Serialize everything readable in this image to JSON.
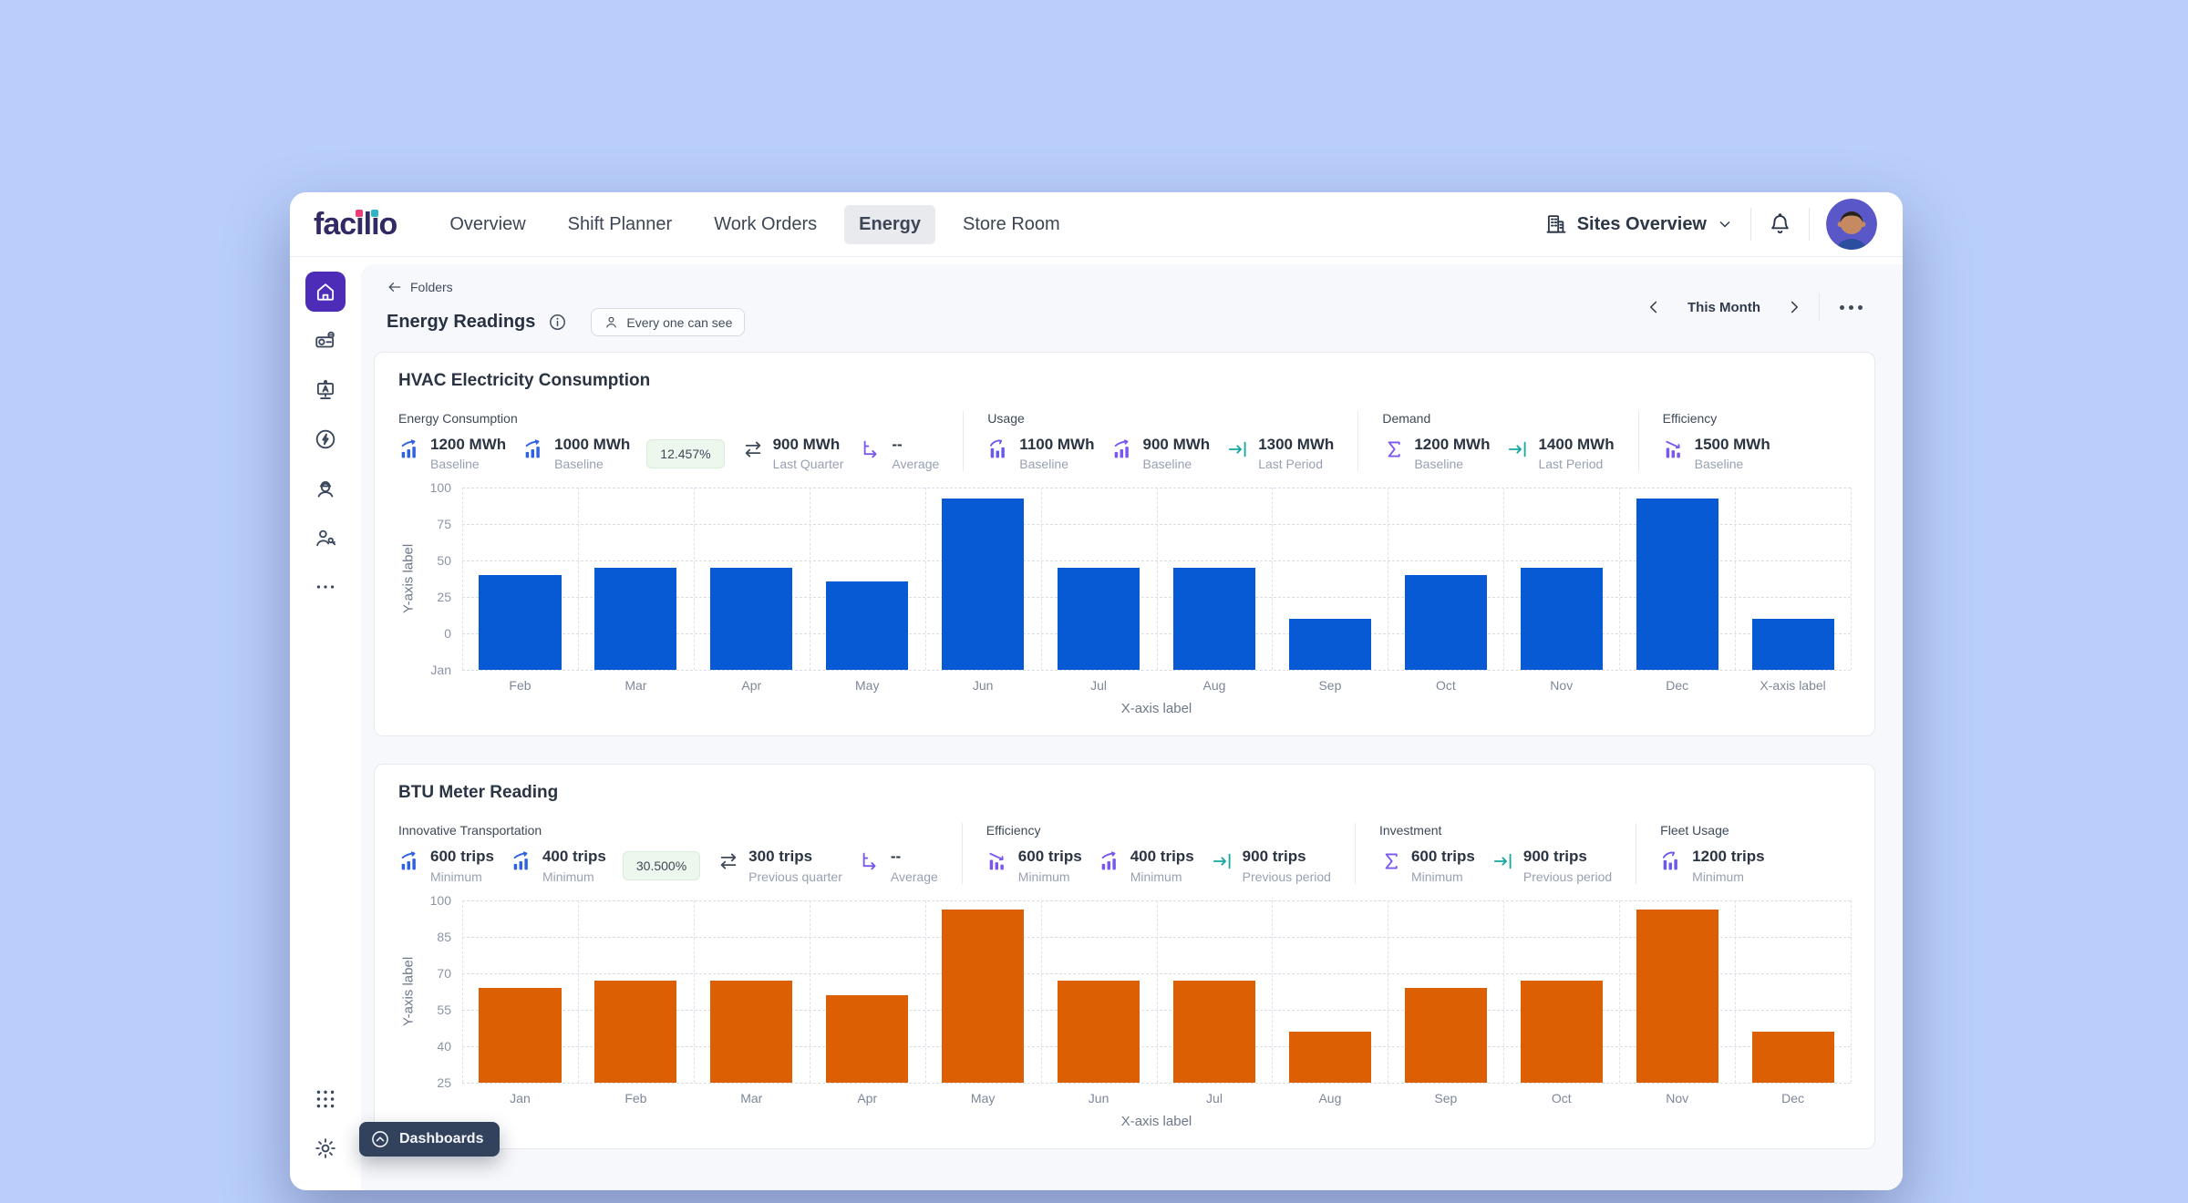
{
  "topnav": {
    "logo_text": "facilio",
    "logo_dot_colors": [
      "#ee3d77",
      "#2fb5c7"
    ],
    "items": [
      "Overview",
      "Shift Planner",
      "Work Orders",
      "Energy",
      "Store Room"
    ],
    "active_item": "Energy",
    "site_selector_label": "Sites Overview"
  },
  "sidebar": {
    "icons": [
      "home",
      "equipment",
      "kiosk",
      "energy",
      "workforce",
      "technician",
      "more"
    ],
    "bottom_icons": [
      "app-grid",
      "settings"
    ],
    "active_icon": "home"
  },
  "page_header": {
    "breadcrumb_label": "Folders",
    "title": "Energy Readings",
    "visibility_badge": "Every one can see",
    "period_label": "This Month"
  },
  "floating_button": {
    "label": "Dashboards"
  },
  "cards": [
    {
      "title": "HVAC Electricity Consumption",
      "chart_index": 0,
      "groups": [
        {
          "label": "Energy Consumption",
          "items": [
            {
              "kind": "kpi",
              "icon": "bars-up",
              "icon_color": "#2e62e0",
              "value": "1200 MWh",
              "sub": "Baseline"
            },
            {
              "kind": "kpi",
              "icon": "bars-up",
              "icon_color": "#2e62e0",
              "value": "1000 MWh",
              "sub": "Baseline"
            },
            {
              "kind": "badge",
              "text": "12.457%"
            },
            {
              "kind": "kpi",
              "icon": "swap",
              "icon_color": "#3f4a59",
              "value": "900 MWh",
              "sub": "Last Quarter"
            },
            {
              "kind": "kpi",
              "icon": "axis-arrow",
              "icon_color": "#7a58f0",
              "value": "--",
              "sub": "Average"
            }
          ]
        },
        {
          "label": "Usage",
          "items": [
            {
              "kind": "kpi",
              "icon": "bars-arc",
              "icon_color": "#6a5ae8",
              "value": "1100 MWh",
              "sub": "Baseline"
            },
            {
              "kind": "kpi",
              "icon": "bars-up",
              "icon_color": "#7a58f0",
              "value": "900 MWh",
              "sub": "Baseline"
            },
            {
              "kind": "kpi",
              "icon": "arrow-to-line",
              "icon_color": "#14a8a0",
              "value": "1300 MWh",
              "sub": "Last Period"
            }
          ]
        },
        {
          "label": "Demand",
          "items": [
            {
              "kind": "kpi",
              "icon": "sigma",
              "icon_color": "#7a58f0",
              "value": "1200 MWh",
              "sub": "Baseline"
            },
            {
              "kind": "kpi",
              "icon": "arrow-to-line",
              "icon_color": "#14a8a0",
              "value": "1400 MWh",
              "sub": "Last Period"
            }
          ]
        },
        {
          "label": "Efficiency",
          "items": [
            {
              "kind": "kpi",
              "icon": "bars-down",
              "icon_color": "#7a58f0",
              "value": "1500 MWh",
              "sub": "Baseline"
            }
          ]
        }
      ]
    },
    {
      "title": "BTU Meter Reading",
      "chart_index": 1,
      "groups": [
        {
          "label": "Innovative Transportation",
          "items": [
            {
              "kind": "kpi",
              "icon": "bars-up",
              "icon_color": "#2e62e0",
              "value": "600 trips",
              "sub": "Minimum"
            },
            {
              "kind": "kpi",
              "icon": "bars-up",
              "icon_color": "#2e62e0",
              "value": "400 trips",
              "sub": "Minimum"
            },
            {
              "kind": "badge",
              "text": "30.500%"
            },
            {
              "kind": "kpi",
              "icon": "swap",
              "icon_color": "#3f4a59",
              "value": "300 trips",
              "sub": "Previous quarter"
            },
            {
              "kind": "kpi",
              "icon": "axis-arrow",
              "icon_color": "#7a58f0",
              "value": "--",
              "sub": "Average"
            }
          ]
        },
        {
          "label": "Efficiency",
          "items": [
            {
              "kind": "kpi",
              "icon": "bars-down",
              "icon_color": "#7a58f0",
              "value": "600 trips",
              "sub": "Minimum"
            },
            {
              "kind": "kpi",
              "icon": "bars-up",
              "icon_color": "#7a58f0",
              "value": "400 trips",
              "sub": "Minimum"
            },
            {
              "kind": "kpi",
              "icon": "arrow-to-line",
              "icon_color": "#14a8a0",
              "value": "900 trips",
              "sub": "Previous period"
            }
          ]
        },
        {
          "label": "Investment",
          "items": [
            {
              "kind": "kpi",
              "icon": "sigma",
              "icon_color": "#7a58f0",
              "value": "600 trips",
              "sub": "Minimum"
            },
            {
              "kind": "kpi",
              "icon": "arrow-to-line",
              "icon_color": "#14a8a0",
              "value": "900 trips",
              "sub": "Previous period"
            }
          ]
        },
        {
          "label": "Fleet Usage",
          "items": [
            {
              "kind": "kpi",
              "icon": "bars-arc",
              "icon_color": "#6a5ae8",
              "value": "1200 trips",
              "sub": "Minimum"
            }
          ]
        }
      ]
    }
  ],
  "chart_data": [
    {
      "type": "bar",
      "title": "HVAC Electricity Consumption",
      "categories": [
        "Feb",
        "Mar",
        "Apr",
        "May",
        "Jun",
        "Jul",
        "Aug",
        "Sep",
        "Oct",
        "Nov",
        "Dec",
        "X-axis label"
      ],
      "values": [
        40,
        45,
        45,
        36,
        93,
        45,
        45,
        10,
        40,
        45,
        93,
        10
      ],
      "xlabel": "X-axis label",
      "ylabel": "Y-axis label",
      "y_ticks": [
        "100",
        "75",
        "50",
        "25",
        "0",
        "Jan"
      ],
      "ylim": [
        -25,
        100
      ],
      "bar_color": "#0759d4",
      "grid": true,
      "legend": false
    },
    {
      "type": "bar",
      "title": "BTU Meter Reading",
      "categories": [
        "Jan",
        "Feb",
        "Mar",
        "Apr",
        "May",
        "Jun",
        "Jul",
        "Aug",
        "Sep",
        "Oct",
        "Nov",
        "Dec"
      ],
      "values": [
        64,
        67,
        67,
        61,
        96,
        67,
        67,
        46,
        64,
        67,
        96,
        46
      ],
      "xlabel": "X-axis label",
      "ylabel": "Y-axis label",
      "y_ticks": [
        "100",
        "85",
        "70",
        "55",
        "40",
        "25"
      ],
      "ylim": [
        25,
        100
      ],
      "bar_color": "#dc5f04",
      "grid": true,
      "legend": false
    }
  ],
  "colors": {
    "accent_purple": "#4d2cb8",
    "bar_blue": "#0759d4",
    "bar_orange": "#dc5f04",
    "badge_green_bg": "#edf7ed",
    "page_bg": "#b9cefa"
  }
}
